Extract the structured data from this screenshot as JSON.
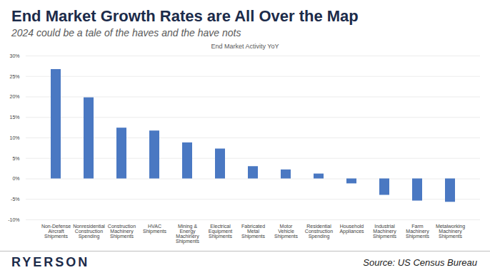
{
  "slide": {
    "title": "End Market Growth Rates are All Over the Map",
    "subtitle": "2024 could be a tale of the haves and the have nots",
    "source": "Source: US Census Bureau",
    "logo": "RYERSON"
  },
  "chart_data": {
    "type": "bar",
    "title": "End Market Activity YoY",
    "categories": [
      "Non-Defense Aircraft Shipments",
      "Nonresidential Construction Spending",
      "Construction Machinery Shipments",
      "HVAC Shipments",
      "Mining & Energy Machinery Shipments",
      "Electrical Equipment Shipments",
      "Fabricated Metal Shipments",
      "Motor Vehicle Shipments",
      "Residential Construction Spending",
      "Household Appliances",
      "Industrial Machinery Shipments",
      "Farm Machinery Shipments",
      "Metalworking Machinery Shipments"
    ],
    "values": [
      26.7,
      19.8,
      12.4,
      11.7,
      8.8,
      7.3,
      3.0,
      2.2,
      1.2,
      -1.2,
      -4.0,
      -5.4,
      -5.7
    ],
    "color": "#4a78c2",
    "ylim": [
      -10,
      30
    ],
    "yticks": [
      {
        "value": -10,
        "label": "-10%"
      },
      {
        "value": -5,
        "label": "-5%"
      },
      {
        "value": 0,
        "label": "0%"
      },
      {
        "value": 5,
        "label": "5%"
      },
      {
        "value": 10,
        "label": "10%"
      },
      {
        "value": 15,
        "label": "15%"
      },
      {
        "value": 20,
        "label": "20%"
      },
      {
        "value": 25,
        "label": "25%"
      },
      {
        "value": 30,
        "label": "30%"
      }
    ],
    "grid": true
  }
}
